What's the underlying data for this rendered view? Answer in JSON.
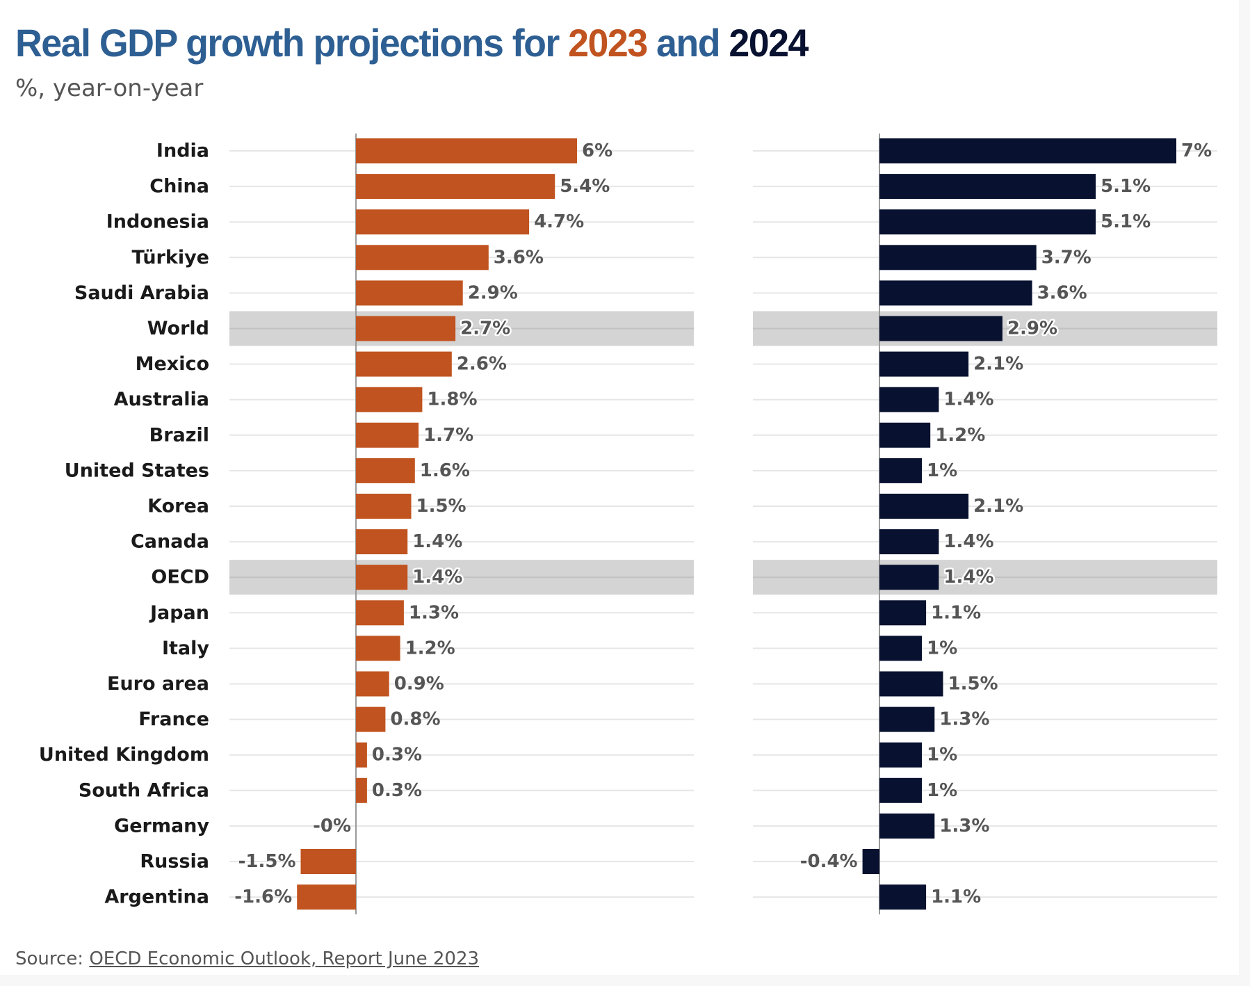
{
  "title": {
    "prefix": "Real GDP growth projections for ",
    "year1": "2023",
    "middle": " and ",
    "year2": "2024"
  },
  "subtitle": "%, year-on-year",
  "source": {
    "prefix": "Source: ",
    "link_text": "OECD Economic Outlook, Report June 2023"
  },
  "colors": {
    "series_2023": "#c0531f",
    "series_2024": "#08112f",
    "title": "#2e5f93",
    "highlight_band": "#d4d4d4",
    "gridline": "#e6e6e6"
  },
  "chart_data": {
    "type": "bar",
    "orientation": "horizontal",
    "categories": [
      "India",
      "China",
      "Indonesia",
      "Türkiye",
      "Saudi Arabia",
      "World",
      "Mexico",
      "Australia",
      "Brazil",
      "United States",
      "Korea",
      "Canada",
      "OECD",
      "Japan",
      "Italy",
      "Euro area",
      "France",
      "United Kingdom",
      "South Africa",
      "Germany",
      "Russia",
      "Argentina"
    ],
    "highlighted_categories": [
      "World",
      "OECD"
    ],
    "series": [
      {
        "name": "2023",
        "values": [
          6.0,
          5.4,
          4.7,
          3.6,
          2.9,
          2.7,
          2.6,
          1.8,
          1.7,
          1.6,
          1.5,
          1.4,
          1.4,
          1.3,
          1.2,
          0.9,
          0.8,
          0.3,
          0.3,
          0.0,
          -1.5,
          -1.6
        ],
        "labels": [
          "6%",
          "5.4%",
          "4.7%",
          "3.6%",
          "2.9%",
          "2.7%",
          "2.6%",
          "1.8%",
          "1.7%",
          "1.6%",
          "1.5%",
          "1.4%",
          "1.4%",
          "1.3%",
          "1.2%",
          "0.9%",
          "0.8%",
          "0.3%",
          "0.3%",
          "-0%",
          "-1.5%",
          "-1.6%"
        ]
      },
      {
        "name": "2024",
        "values": [
          7.0,
          5.1,
          5.1,
          3.7,
          3.6,
          2.9,
          2.1,
          1.4,
          1.2,
          1.0,
          2.1,
          1.4,
          1.4,
          1.1,
          1.0,
          1.5,
          1.3,
          1.0,
          1.0,
          1.3,
          -0.4,
          1.1
        ],
        "labels": [
          "7%",
          "5.1%",
          "5.1%",
          "3.7%",
          "3.6%",
          "2.9%",
          "2.1%",
          "1.4%",
          "1.2%",
          "1%",
          "2.1%",
          "1.4%",
          "1.4%",
          "1.1%",
          "1%",
          "1.5%",
          "1.3%",
          "1%",
          "1%",
          "1.3%",
          "-0.4%",
          "1.1%"
        ]
      }
    ],
    "xlim": [
      -3,
      8
    ],
    "grid": true,
    "legend": "none"
  }
}
